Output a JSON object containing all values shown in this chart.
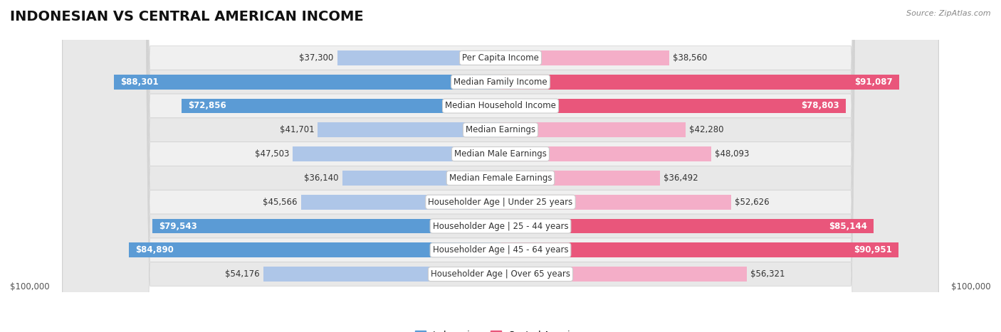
{
  "title": "INDONESIAN VS CENTRAL AMERICAN INCOME",
  "source": "Source: ZipAtlas.com",
  "categories": [
    "Per Capita Income",
    "Median Family Income",
    "Median Household Income",
    "Median Earnings",
    "Median Male Earnings",
    "Median Female Earnings",
    "Householder Age | Under 25 years",
    "Householder Age | 25 - 44 years",
    "Householder Age | 45 - 64 years",
    "Householder Age | Over 65 years"
  ],
  "indonesian": [
    37300,
    88301,
    72856,
    41701,
    47503,
    36140,
    45566,
    79543,
    84890,
    54176
  ],
  "central_american": [
    38560,
    91087,
    78803,
    42280,
    48093,
    36492,
    52626,
    85144,
    90951,
    56321
  ],
  "indonesian_labels": [
    "$37,300",
    "$88,301",
    "$72,856",
    "$41,701",
    "$47,503",
    "$36,140",
    "$45,566",
    "$79,543",
    "$84,890",
    "$54,176"
  ],
  "central_american_labels": [
    "$38,560",
    "$91,087",
    "$78,803",
    "$42,280",
    "$48,093",
    "$36,492",
    "$52,626",
    "$85,144",
    "$90,951",
    "$56,321"
  ],
  "indonesian_color_light": "#aec6e8",
  "indonesian_color_dark": "#5b9bd5",
  "central_american_color_light": "#f4aec8",
  "central_american_color_dark": "#e9567b",
  "max_value": 100000,
  "bar_height": 0.62,
  "legend_indonesian": "Indonesian",
  "legend_central_american": "Central American",
  "title_fontsize": 14,
  "label_fontsize": 8.5,
  "category_fontsize": 8.5,
  "inside_threshold": 0.6
}
